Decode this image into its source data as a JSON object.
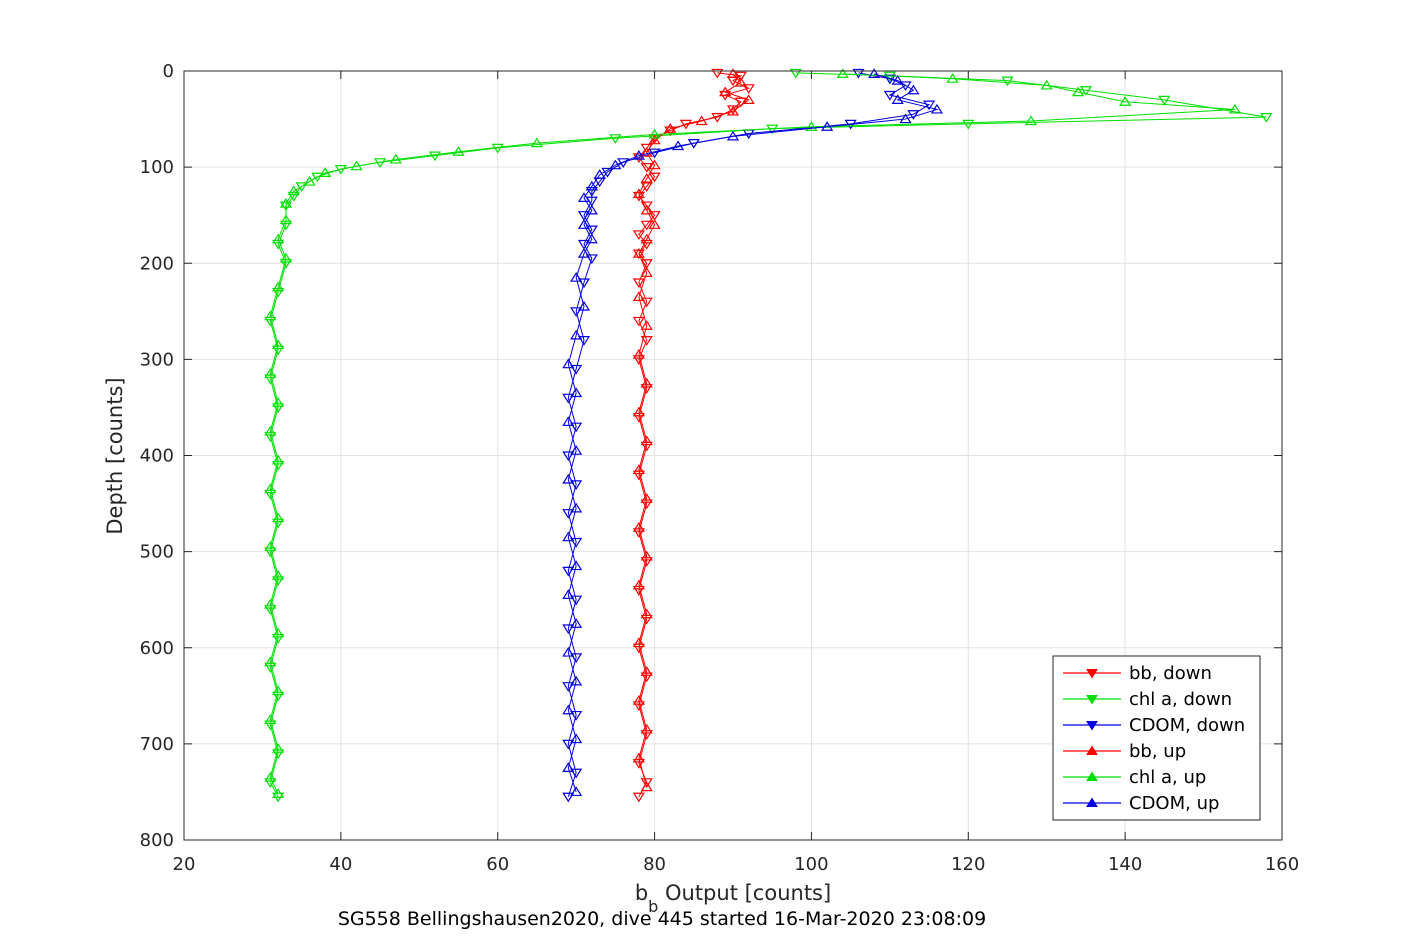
{
  "chart_data": {
    "type": "scatter",
    "xlabel_main": "b",
    "xlabel_sub": "b",
    "xlabel_rest": " Output [counts]",
    "ylabel": "Depth [counts]",
    "caption": "SG558 Bellingshausen2020, dive 445 started 16-Mar-2020 23:08:09",
    "xlim": [
      20,
      160
    ],
    "ylim": [
      0,
      800
    ],
    "y_reversed": true,
    "grid": true,
    "legend_position": "bottom-right",
    "x_ticks": [
      "20",
      "40",
      "60",
      "80",
      "100",
      "120",
      "140",
      "160"
    ],
    "y_ticks": [
      "0",
      "100",
      "200",
      "300",
      "400",
      "500",
      "600",
      "700",
      "800"
    ],
    "series": [
      {
        "name": "bb, down",
        "color": "#ff0000",
        "marker": "triangle-down",
        "points": [
          [
            88,
            2
          ],
          [
            91,
            5
          ],
          [
            90,
            10
          ],
          [
            92,
            18
          ],
          [
            89,
            25
          ],
          [
            91,
            32
          ],
          [
            90,
            40
          ],
          [
            88,
            48
          ],
          [
            84,
            55
          ],
          [
            82,
            62
          ],
          [
            80,
            70
          ],
          [
            79,
            80
          ],
          [
            78,
            90
          ],
          [
            79,
            100
          ],
          [
            80,
            110
          ],
          [
            79,
            120
          ],
          [
            78,
            130
          ],
          [
            79,
            140
          ],
          [
            80,
            150
          ],
          [
            79,
            160
          ],
          [
            78,
            170
          ],
          [
            79,
            180
          ],
          [
            78,
            190
          ],
          [
            79,
            200
          ],
          [
            78,
            220
          ],
          [
            79,
            240
          ],
          [
            78,
            260
          ],
          [
            79,
            280
          ],
          [
            78,
            300
          ],
          [
            79,
            330
          ],
          [
            78,
            360
          ],
          [
            79,
            390
          ],
          [
            78,
            420
          ],
          [
            79,
            450
          ],
          [
            78,
            480
          ],
          [
            79,
            510
          ],
          [
            78,
            540
          ],
          [
            79,
            570
          ],
          [
            78,
            600
          ],
          [
            79,
            630
          ],
          [
            78,
            660
          ],
          [
            79,
            690
          ],
          [
            78,
            720
          ],
          [
            79,
            740
          ],
          [
            78,
            755
          ]
        ]
      },
      {
        "name": "chl a, down",
        "color": "#00e000",
        "marker": "triangle-down",
        "points": [
          [
            98,
            2
          ],
          [
            110,
            5
          ],
          [
            125,
            10
          ],
          [
            135,
            20
          ],
          [
            145,
            30
          ],
          [
            158,
            48
          ],
          [
            120,
            55
          ],
          [
            95,
            60
          ],
          [
            75,
            70
          ],
          [
            60,
            80
          ],
          [
            52,
            88
          ],
          [
            45,
            95
          ],
          [
            40,
            102
          ],
          [
            37,
            110
          ],
          [
            35,
            120
          ],
          [
            34,
            130
          ],
          [
            33,
            140
          ],
          [
            33,
            160
          ],
          [
            32,
            180
          ],
          [
            33,
            200
          ],
          [
            32,
            230
          ],
          [
            31,
            260
          ],
          [
            32,
            290
          ],
          [
            31,
            320
          ],
          [
            32,
            350
          ],
          [
            31,
            380
          ],
          [
            32,
            410
          ],
          [
            31,
            440
          ],
          [
            32,
            470
          ],
          [
            31,
            500
          ],
          [
            32,
            530
          ],
          [
            31,
            560
          ],
          [
            32,
            590
          ],
          [
            31,
            620
          ],
          [
            32,
            650
          ],
          [
            31,
            680
          ],
          [
            32,
            710
          ],
          [
            31,
            740
          ],
          [
            32,
            755
          ]
        ]
      },
      {
        "name": "CDOM, down",
        "color": "#0000e0",
        "marker": "triangle-down",
        "points": [
          [
            106,
            2
          ],
          [
            110,
            8
          ],
          [
            112,
            15
          ],
          [
            110,
            25
          ],
          [
            115,
            35
          ],
          [
            113,
            45
          ],
          [
            105,
            55
          ],
          [
            92,
            65
          ],
          [
            85,
            75
          ],
          [
            80,
            85
          ],
          [
            76,
            95
          ],
          [
            74,
            105
          ],
          [
            73,
            115
          ],
          [
            72,
            125
          ],
          [
            72,
            135
          ],
          [
            71,
            150
          ],
          [
            72,
            165
          ],
          [
            71,
            180
          ],
          [
            72,
            195
          ],
          [
            71,
            220
          ],
          [
            70,
            250
          ],
          [
            71,
            280
          ],
          [
            70,
            310
          ],
          [
            69,
            340
          ],
          [
            70,
            370
          ],
          [
            69,
            400
          ],
          [
            70,
            430
          ],
          [
            69,
            460
          ],
          [
            70,
            490
          ],
          [
            69,
            520
          ],
          [
            70,
            550
          ],
          [
            69,
            580
          ],
          [
            70,
            610
          ],
          [
            69,
            640
          ],
          [
            70,
            670
          ],
          [
            69,
            700
          ],
          [
            70,
            730
          ],
          [
            69,
            755
          ]
        ]
      },
      {
        "name": "bb, up",
        "color": "#ff0000",
        "marker": "triangle-up",
        "points": [
          [
            90,
            3
          ],
          [
            91,
            12
          ],
          [
            89,
            22
          ],
          [
            92,
            30
          ],
          [
            90,
            42
          ],
          [
            86,
            52
          ],
          [
            82,
            60
          ],
          [
            80,
            72
          ],
          [
            79,
            85
          ],
          [
            80,
            98
          ],
          [
            79,
            112
          ],
          [
            78,
            128
          ],
          [
            79,
            145
          ],
          [
            80,
            160
          ],
          [
            79,
            175
          ],
          [
            78,
            190
          ],
          [
            79,
            210
          ],
          [
            78,
            235
          ],
          [
            79,
            265
          ],
          [
            78,
            295
          ],
          [
            79,
            325
          ],
          [
            78,
            355
          ],
          [
            79,
            385
          ],
          [
            78,
            415
          ],
          [
            79,
            445
          ],
          [
            78,
            475
          ],
          [
            79,
            505
          ],
          [
            78,
            535
          ],
          [
            79,
            565
          ],
          [
            78,
            595
          ],
          [
            79,
            625
          ],
          [
            78,
            655
          ],
          [
            79,
            685
          ],
          [
            78,
            715
          ],
          [
            79,
            745
          ]
        ]
      },
      {
        "name": "chl a, up",
        "color": "#00e000",
        "marker": "triangle-up",
        "points": [
          [
            104,
            3
          ],
          [
            118,
            8
          ],
          [
            130,
            15
          ],
          [
            134,
            22
          ],
          [
            140,
            32
          ],
          [
            154,
            40
          ],
          [
            128,
            52
          ],
          [
            100,
            58
          ],
          [
            80,
            66
          ],
          [
            65,
            75
          ],
          [
            55,
            84
          ],
          [
            47,
            92
          ],
          [
            42,
            99
          ],
          [
            38,
            106
          ],
          [
            36,
            115
          ],
          [
            34,
            125
          ],
          [
            33,
            138
          ],
          [
            33,
            155
          ],
          [
            32,
            175
          ],
          [
            33,
            195
          ],
          [
            32,
            225
          ],
          [
            31,
            255
          ],
          [
            32,
            285
          ],
          [
            31,
            315
          ],
          [
            32,
            345
          ],
          [
            31,
            375
          ],
          [
            32,
            405
          ],
          [
            31,
            435
          ],
          [
            32,
            465
          ],
          [
            31,
            495
          ],
          [
            32,
            525
          ],
          [
            31,
            555
          ],
          [
            32,
            585
          ],
          [
            31,
            615
          ],
          [
            32,
            645
          ],
          [
            31,
            675
          ],
          [
            32,
            705
          ],
          [
            31,
            735
          ],
          [
            32,
            752
          ]
        ]
      },
      {
        "name": "CDOM, up",
        "color": "#0000e0",
        "marker": "triangle-up",
        "points": [
          [
            108,
            3
          ],
          [
            111,
            10
          ],
          [
            113,
            20
          ],
          [
            111,
            30
          ],
          [
            116,
            40
          ],
          [
            112,
            50
          ],
          [
            102,
            58
          ],
          [
            90,
            68
          ],
          [
            83,
            78
          ],
          [
            78,
            88
          ],
          [
            75,
            98
          ],
          [
            73,
            108
          ],
          [
            72,
            120
          ],
          [
            71,
            132
          ],
          [
            72,
            145
          ],
          [
            71,
            160
          ],
          [
            72,
            175
          ],
          [
            71,
            190
          ],
          [
            70,
            215
          ],
          [
            71,
            245
          ],
          [
            70,
            275
          ],
          [
            69,
            305
          ],
          [
            70,
            335
          ],
          [
            69,
            365
          ],
          [
            70,
            395
          ],
          [
            69,
            425
          ],
          [
            70,
            455
          ],
          [
            69,
            485
          ],
          [
            70,
            515
          ],
          [
            69,
            545
          ],
          [
            70,
            575
          ],
          [
            69,
            605
          ],
          [
            70,
            635
          ],
          [
            69,
            665
          ],
          [
            70,
            695
          ],
          [
            69,
            725
          ],
          [
            70,
            750
          ]
        ]
      }
    ]
  }
}
